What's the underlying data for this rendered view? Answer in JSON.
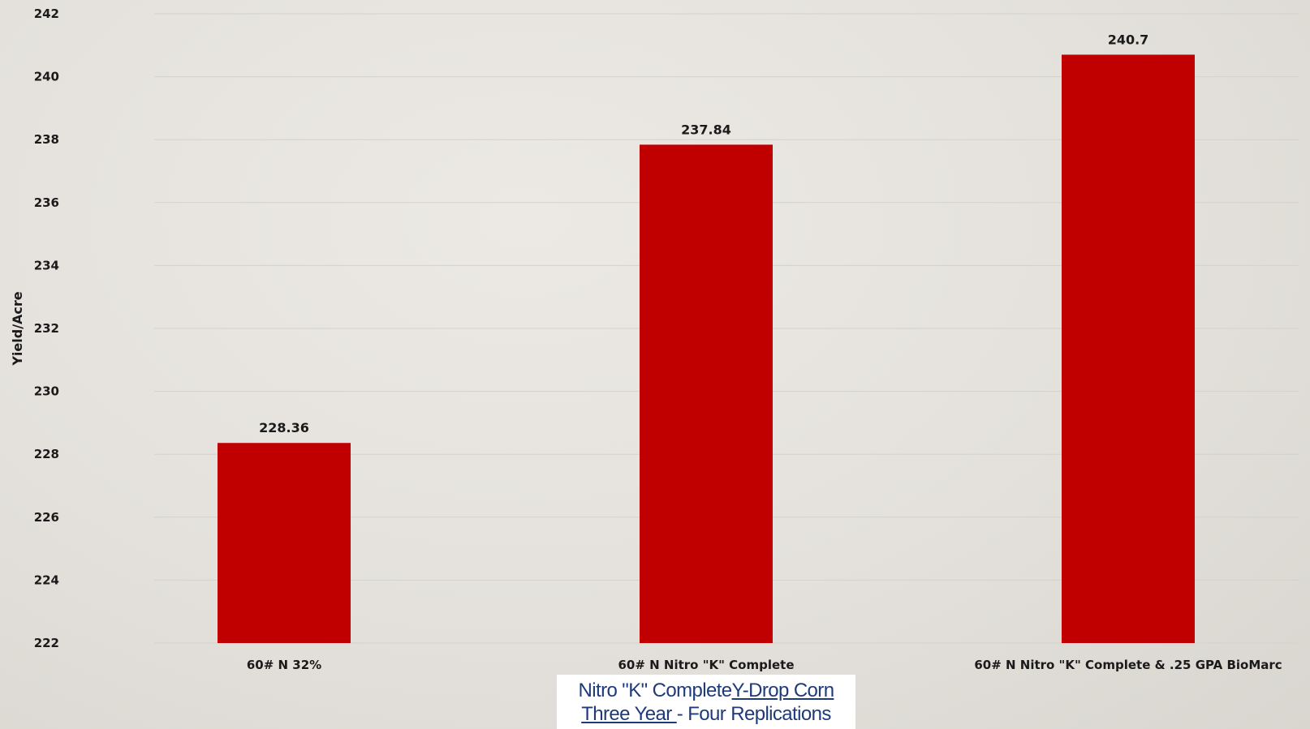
{
  "chart_data": {
    "type": "bar",
    "categories": [
      "60# N 32%",
      "60# N Nitro \"K\" Complete",
      "60# N Nitro \"K\" Complete & .25 GPA BioMarc"
    ],
    "values": [
      228.36,
      237.84,
      240.7
    ],
    "data_labels": [
      "228.36",
      "237.84",
      "240.7"
    ],
    "title": "",
    "xlabel": "",
    "ylabel": "Yield/Acre",
    "ylim": [
      222,
      242
    ],
    "yticks": [
      222,
      224,
      226,
      228,
      230,
      232,
      234,
      236,
      238,
      240,
      242
    ],
    "grid": true,
    "legend": "none",
    "bar_color": "#c00000"
  },
  "caption": {
    "line1_part1": "Nitro \"K\" Complete",
    "line1_part2": "Y-Drop Corn",
    "line2_part1": "Three Year ",
    "line2_part2": "- Four Replications"
  },
  "colors": {
    "bar": "#c00000",
    "caption_text": "#1f3a7a",
    "gridline": "#d4d1cc"
  }
}
